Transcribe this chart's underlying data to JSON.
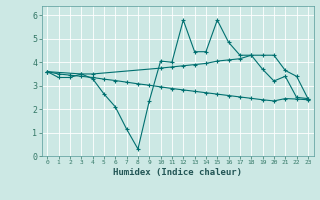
{
  "xlabel": "Humidex (Indice chaleur)",
  "ylabel": "",
  "bg_color": "#cce8e4",
  "line_color": "#007070",
  "grid_color": "#ffffff",
  "xlim": [
    -0.5,
    23.5
  ],
  "ylim": [
    0,
    6.4
  ],
  "xticks": [
    0,
    1,
    2,
    3,
    4,
    5,
    6,
    7,
    8,
    9,
    10,
    11,
    12,
    13,
    14,
    15,
    16,
    17,
    18,
    19,
    20,
    21,
    22,
    23
  ],
  "yticks": [
    0,
    1,
    2,
    3,
    4,
    5,
    6
  ],
  "line1_x": [
    0,
    1,
    2,
    3,
    4,
    5,
    6,
    7,
    8,
    9,
    10,
    11,
    12,
    13,
    14,
    15,
    16,
    17,
    18,
    19,
    20,
    21,
    22,
    23
  ],
  "line1_y": [
    3.6,
    3.35,
    3.35,
    3.5,
    3.3,
    2.65,
    2.1,
    1.15,
    0.3,
    2.35,
    4.05,
    4.0,
    5.8,
    4.45,
    4.45,
    5.8,
    4.85,
    4.3,
    4.3,
    3.7,
    3.2,
    3.4,
    2.5,
    2.45
  ],
  "line2_x": [
    0,
    3,
    4,
    10,
    11,
    12,
    13,
    14,
    15,
    16,
    17,
    18,
    19,
    20,
    21,
    22,
    23
  ],
  "line2_y": [
    3.6,
    3.5,
    3.5,
    3.75,
    3.8,
    3.85,
    3.9,
    3.95,
    4.05,
    4.1,
    4.15,
    4.3,
    4.3,
    4.3,
    3.65,
    3.4,
    2.45
  ],
  "line3_x": [
    0,
    1,
    2,
    3,
    4,
    5,
    6,
    7,
    8,
    9,
    10,
    11,
    12,
    13,
    14,
    15,
    16,
    17,
    18,
    19,
    20,
    21,
    22,
    23
  ],
  "line3_y": [
    3.6,
    3.5,
    3.45,
    3.4,
    3.35,
    3.28,
    3.22,
    3.15,
    3.08,
    3.02,
    2.95,
    2.88,
    2.82,
    2.76,
    2.7,
    2.64,
    2.58,
    2.52,
    2.46,
    2.4,
    2.35,
    2.45,
    2.43,
    2.4
  ]
}
